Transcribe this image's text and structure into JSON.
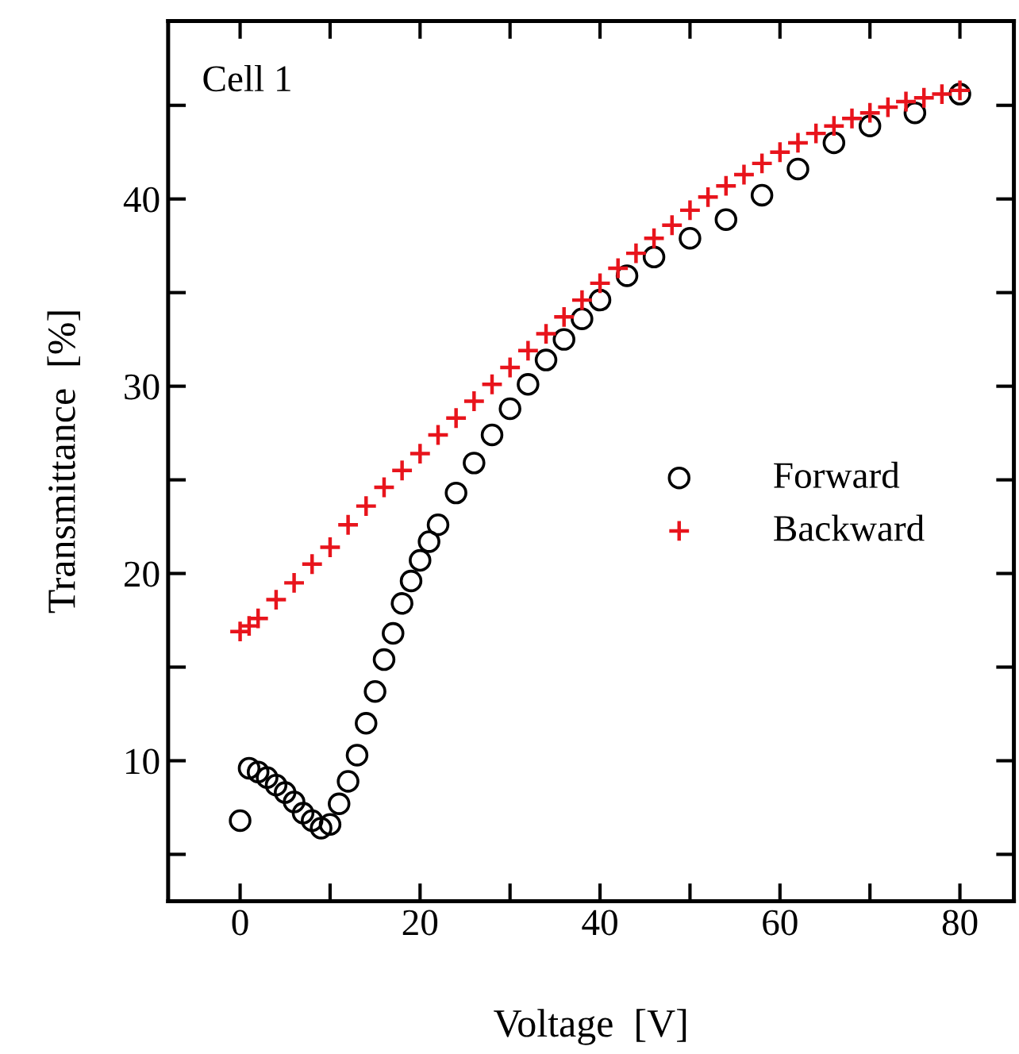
{
  "chart_data": {
    "type": "scatter",
    "xlabel": "Voltage  [V]",
    "ylabel": "Transmittance  [%]",
    "annotations": [
      "Cell 1"
    ],
    "xlim": [
      -8,
      86
    ],
    "ylim": [
      2.5,
      49.5
    ],
    "xticks": [
      0,
      {
        "value": 10,
        "label": null
      },
      20,
      {
        "value": 30,
        "label": null
      },
      40,
      {
        "value": 50,
        "label": null
      },
      60,
      {
        "value": 70,
        "label": null
      },
      80
    ],
    "yticks": [
      {
        "value": 5,
        "label": null
      },
      10,
      {
        "value": 15,
        "label": null
      },
      20,
      {
        "value": 25,
        "label": null
      },
      30,
      {
        "value": 35,
        "label": null
      },
      40,
      {
        "value": 45,
        "label": null
      }
    ],
    "grid": false,
    "legend": "right",
    "series": [
      {
        "name": "Forward",
        "color": "#000000",
        "marker": "circle",
        "x": [
          0,
          1,
          2,
          3,
          4,
          5,
          6,
          7,
          8,
          9,
          10,
          11,
          12,
          13,
          14,
          15,
          16,
          17,
          18,
          19,
          20,
          21,
          22,
          24,
          26,
          28,
          30,
          32,
          34,
          36,
          38,
          40,
          43,
          46,
          50,
          54,
          58,
          62,
          66,
          70,
          75,
          80
        ],
        "values": [
          6.8,
          9.6,
          9.4,
          9.1,
          8.7,
          8.3,
          7.8,
          7.2,
          6.8,
          6.4,
          6.6,
          7.7,
          8.9,
          10.3,
          12.0,
          13.7,
          15.4,
          16.8,
          18.4,
          19.6,
          20.7,
          21.7,
          22.6,
          24.3,
          25.9,
          27.4,
          28.8,
          30.1,
          31.4,
          32.5,
          33.6,
          34.6,
          35.9,
          36.9,
          37.9,
          38.9,
          40.2,
          41.6,
          43.0,
          43.9,
          44.6,
          45.6
        ]
      },
      {
        "name": "Backward",
        "color": "#e8141c",
        "marker": "cross",
        "x": [
          0,
          1,
          2,
          4,
          6,
          8,
          10,
          12,
          14,
          16,
          18,
          20,
          22,
          24,
          26,
          28,
          30,
          32,
          34,
          36,
          38,
          40,
          42,
          44,
          46,
          48,
          50,
          52,
          54,
          56,
          58,
          60,
          62,
          64,
          66,
          68,
          70,
          72,
          74,
          76,
          78,
          80
        ],
        "values": [
          16.9,
          17.2,
          17.6,
          18.6,
          19.5,
          20.5,
          21.4,
          22.6,
          23.6,
          24.6,
          25.5,
          26.4,
          27.4,
          28.3,
          29.2,
          30.1,
          31.0,
          31.9,
          32.8,
          33.7,
          34.6,
          35.5,
          36.3,
          37.1,
          37.9,
          38.6,
          39.4,
          40.1,
          40.7,
          41.3,
          41.9,
          42.5,
          43.0,
          43.5,
          43.9,
          44.3,
          44.6,
          44.9,
          45.2,
          45.4,
          45.6,
          45.8
        ]
      }
    ]
  }
}
